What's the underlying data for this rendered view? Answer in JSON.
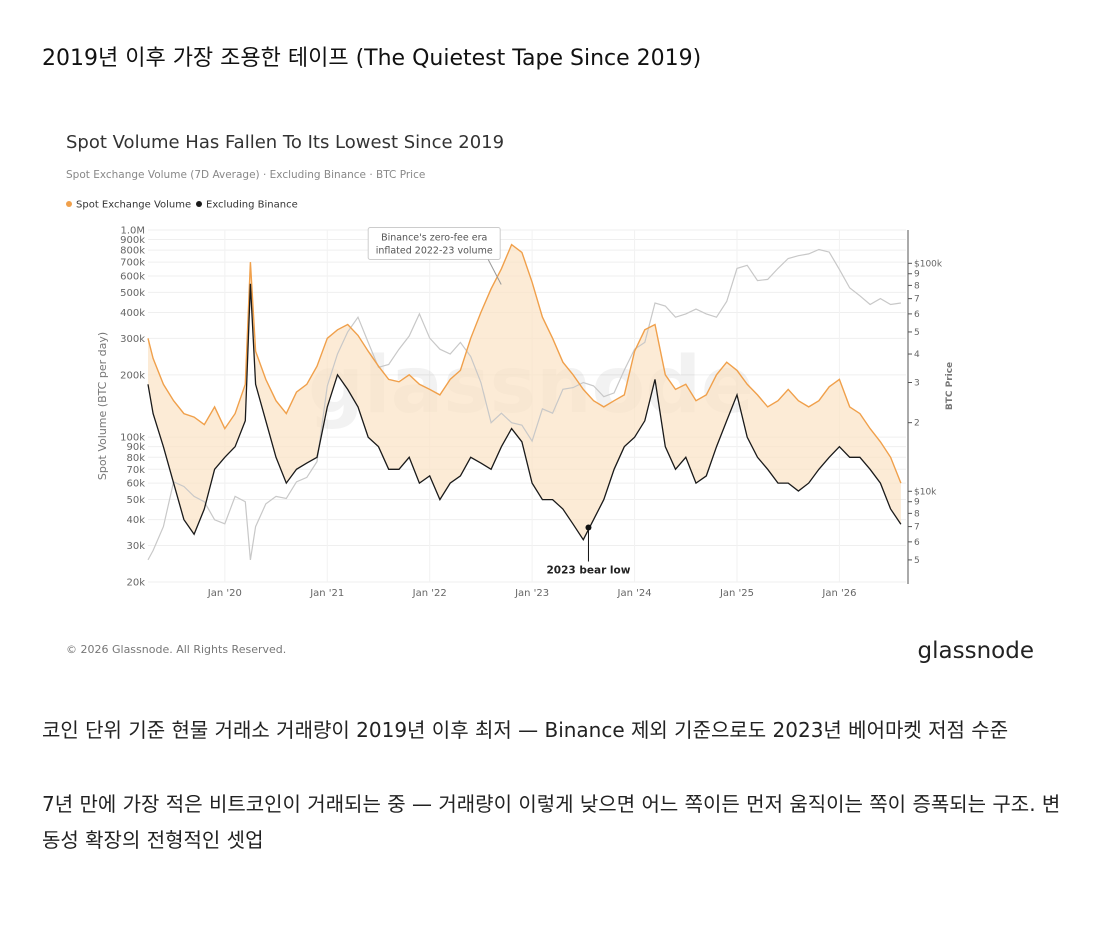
{
  "post": {
    "title": "2019년 이후 가장 조용한 테이프 (The Quietest Tape Since 2019)",
    "caption_1": "코인 단위 기준 현물 거래소 거래량이 2019년 이후 최저 — Binance 제외 기준으로도 2023년 베어마켓 저점 수준",
    "caption_2": "7년 만에 가장 적은 비트코인이 거래되는 중 — 거래량이 이렇게 낮으면 어느 쪽이든 먼저 움직이는 쪽이 증폭되는 구조. 변동성 확장의 전형적인 셋업"
  },
  "chart_data": {
    "type": "line",
    "title": "Spot Volume Has Fallen To Its Lowest Since 2019",
    "subtitle": "Spot Exchange Volume (7D Average) · Excluding Binance · BTC Price",
    "ylabel": "Spot Volume (BTC per day)",
    "y2label": "BTC Price",
    "y_scale": "log",
    "ylim": [
      20000,
      1000000
    ],
    "y_ticks": [
      "20k",
      "30k",
      "40k",
      "50k",
      "60k",
      "70k",
      "80k",
      "90k",
      "100k",
      "200k",
      "300k",
      "400k",
      "500k",
      "600k",
      "700k",
      "800k",
      "900k",
      "1.0M"
    ],
    "y_tick_values": [
      20000,
      30000,
      40000,
      50000,
      60000,
      70000,
      80000,
      90000,
      100000,
      200000,
      300000,
      400000,
      500000,
      600000,
      700000,
      800000,
      900000,
      1000000
    ],
    "y2_scale": "log",
    "y2lim": [
      4000,
      140000
    ],
    "y2_ticks": [
      "5",
      "6",
      "7",
      "8",
      "9",
      "$10k",
      "2",
      "3",
      "4",
      "5",
      "6",
      "7",
      "8",
      "9",
      "$100k"
    ],
    "y2_tick_values": [
      5000,
      6000,
      7000,
      8000,
      9000,
      10000,
      20000,
      30000,
      40000,
      50000,
      60000,
      70000,
      80000,
      90000,
      100000
    ],
    "x_ticks": [
      "Jan '20",
      "Jan '21",
      "Jan '22",
      "Jan '23",
      "Jan '24",
      "Jan '25",
      "Jan '26"
    ],
    "x_tick_values": [
      2020,
      2021,
      2022,
      2023,
      2024,
      2025,
      2026
    ],
    "xlim": [
      2019.25,
      2026.65
    ],
    "legend_position": "top-left",
    "grid": true,
    "series": [
      {
        "name": "Spot Exchange Volume",
        "color": "#f0a04b",
        "x": [
          2019.25,
          2019.3,
          2019.4,
          2019.5,
          2019.6,
          2019.7,
          2019.8,
          2019.9,
          2020.0,
          2020.1,
          2020.2,
          2020.25,
          2020.3,
          2020.4,
          2020.5,
          2020.6,
          2020.7,
          2020.8,
          2020.9,
          2021.0,
          2021.1,
          2021.2,
          2021.3,
          2021.4,
          2021.5,
          2021.6,
          2021.7,
          2021.8,
          2021.9,
          2022.0,
          2022.1,
          2022.2,
          2022.3,
          2022.4,
          2022.5,
          2022.6,
          2022.7,
          2022.8,
          2022.9,
          2023.0,
          2023.1,
          2023.2,
          2023.3,
          2023.4,
          2023.5,
          2023.6,
          2023.7,
          2023.8,
          2023.9,
          2024.0,
          2024.1,
          2024.2,
          2024.3,
          2024.4,
          2024.5,
          2024.6,
          2024.7,
          2024.8,
          2024.9,
          2025.0,
          2025.1,
          2025.2,
          2025.3,
          2025.4,
          2025.5,
          2025.6,
          2025.7,
          2025.8,
          2025.9,
          2026.0,
          2026.1,
          2026.2,
          2026.3,
          2026.4,
          2026.5,
          2026.6
        ],
        "values": [
          300000,
          240000,
          180000,
          150000,
          130000,
          125000,
          115000,
          140000,
          110000,
          130000,
          180000,
          700000,
          260000,
          190000,
          150000,
          130000,
          165000,
          180000,
          220000,
          300000,
          330000,
          350000,
          310000,
          260000,
          220000,
          190000,
          185000,
          200000,
          180000,
          170000,
          160000,
          190000,
          210000,
          300000,
          400000,
          520000,
          650000,
          850000,
          780000,
          560000,
          380000,
          300000,
          230000,
          200000,
          170000,
          150000,
          140000,
          150000,
          160000,
          260000,
          330000,
          350000,
          200000,
          170000,
          180000,
          150000,
          160000,
          200000,
          230000,
          210000,
          180000,
          160000,
          140000,
          150000,
          170000,
          150000,
          140000,
          150000,
          175000,
          190000,
          140000,
          130000,
          110000,
          95000,
          80000,
          60000
        ]
      },
      {
        "name": "Excluding Binance",
        "color": "#1a1a1a",
        "x": [
          2019.25,
          2019.3,
          2019.4,
          2019.5,
          2019.6,
          2019.7,
          2019.8,
          2019.9,
          2020.0,
          2020.1,
          2020.2,
          2020.25,
          2020.3,
          2020.4,
          2020.5,
          2020.6,
          2020.7,
          2020.8,
          2020.9,
          2021.0,
          2021.1,
          2021.2,
          2021.3,
          2021.4,
          2021.5,
          2021.6,
          2021.7,
          2021.8,
          2021.9,
          2022.0,
          2022.1,
          2022.2,
          2022.3,
          2022.4,
          2022.5,
          2022.6,
          2022.7,
          2022.8,
          2022.9,
          2023.0,
          2023.1,
          2023.2,
          2023.3,
          2023.4,
          2023.5,
          2023.6,
          2023.7,
          2023.8,
          2023.9,
          2024.0,
          2024.1,
          2024.2,
          2024.3,
          2024.4,
          2024.5,
          2024.6,
          2024.7,
          2024.8,
          2024.9,
          2025.0,
          2025.1,
          2025.2,
          2025.3,
          2025.4,
          2025.5,
          2025.6,
          2025.7,
          2025.8,
          2025.9,
          2026.0,
          2026.1,
          2026.2,
          2026.3,
          2026.4,
          2026.5,
          2026.6
        ],
        "values": [
          180000,
          130000,
          90000,
          60000,
          40000,
          34000,
          45000,
          70000,
          80000,
          90000,
          120000,
          550000,
          180000,
          120000,
          80000,
          60000,
          70000,
          75000,
          80000,
          140000,
          200000,
          170000,
          140000,
          100000,
          90000,
          70000,
          70000,
          80000,
          60000,
          65000,
          50000,
          60000,
          65000,
          80000,
          75000,
          70000,
          90000,
          110000,
          95000,
          60000,
          50000,
          50000,
          45000,
          38000,
          32000,
          40000,
          50000,
          70000,
          90000,
          100000,
          120000,
          190000,
          90000,
          70000,
          80000,
          60000,
          65000,
          90000,
          120000,
          160000,
          100000,
          80000,
          70000,
          60000,
          60000,
          55000,
          60000,
          70000,
          80000,
          90000,
          80000,
          80000,
          70000,
          60000,
          45000,
          38000
        ]
      },
      {
        "name": "BTC Price",
        "color": "#c8c8c8",
        "axis": "right",
        "x": [
          2019.25,
          2019.3,
          2019.4,
          2019.5,
          2019.6,
          2019.7,
          2019.8,
          2019.9,
          2020.0,
          2020.1,
          2020.2,
          2020.25,
          2020.3,
          2020.4,
          2020.5,
          2020.6,
          2020.7,
          2020.8,
          2020.9,
          2021.0,
          2021.1,
          2021.2,
          2021.3,
          2021.4,
          2021.5,
          2021.6,
          2021.7,
          2021.8,
          2021.9,
          2022.0,
          2022.1,
          2022.2,
          2022.3,
          2022.4,
          2022.5,
          2022.6,
          2022.7,
          2022.8,
          2022.9,
          2023.0,
          2023.1,
          2023.2,
          2023.3,
          2023.4,
          2023.5,
          2023.6,
          2023.7,
          2023.8,
          2023.9,
          2024.0,
          2024.1,
          2024.2,
          2024.3,
          2024.4,
          2024.5,
          2024.6,
          2024.7,
          2024.8,
          2024.9,
          2025.0,
          2025.1,
          2025.2,
          2025.3,
          2025.4,
          2025.5,
          2025.6,
          2025.7,
          2025.8,
          2025.9,
          2026.0,
          2026.1,
          2026.2,
          2026.3,
          2026.4,
          2026.5,
          2026.6
        ],
        "values": [
          5000,
          5500,
          7000,
          11000,
          10500,
          9500,
          9000,
          7500,
          7200,
          9500,
          9000,
          5000,
          7000,
          8800,
          9500,
          9300,
          11000,
          11500,
          13500,
          29000,
          40000,
          50000,
          58000,
          45000,
          35000,
          36000,
          42000,
          48000,
          60000,
          47000,
          42000,
          40000,
          45000,
          39000,
          30000,
          20000,
          22000,
          20000,
          19500,
          16600,
          23000,
          22000,
          28000,
          28500,
          30000,
          29000,
          26000,
          27000,
          34000,
          42000,
          45000,
          67000,
          65000,
          58000,
          60000,
          63000,
          60000,
          58000,
          68000,
          95000,
          98000,
          84000,
          85000,
          95000,
          105000,
          108000,
          110000,
          115000,
          112000,
          94000,
          78000,
          72000,
          66000,
          70000,
          66000,
          67000
        ]
      }
    ],
    "annotations": [
      {
        "text": [
          "Binance's zero-fee era",
          "inflated 2022-23 volume"
        ],
        "x": 2022.62,
        "y": 900000
      },
      {
        "text": "2023 bear low",
        "x": 2023.55,
        "y": 30000
      }
    ],
    "footer": "© 2026 Glassnode. All Rights Reserved.",
    "logo": "glassnode"
  }
}
